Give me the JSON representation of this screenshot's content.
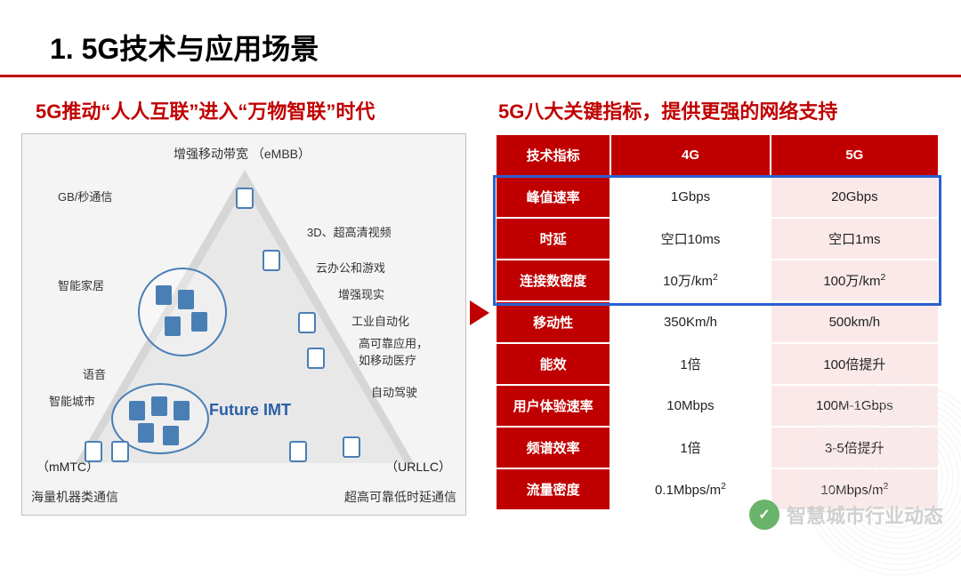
{
  "title": "1. 5G技术与应用场景",
  "colors": {
    "accent": "#c00000",
    "highlight_border": "#2a5fd0",
    "cell_5g": "#fbe9e9",
    "diagram_bg": "#f4f4f4",
    "tri": "#d6d6d6",
    "blue": "#4a7fb5"
  },
  "left": {
    "heading": "5G推动“人人互联”进入“万物智联”时代",
    "apex": "增强移动带宽  （eMBB）",
    "bottom_left": "海量机器类通信",
    "bottom_right": "超高可靠低时延通信",
    "corner_left": "（mMTC）",
    "corner_right": "（URLLC）",
    "center": "Future IMT",
    "labels": {
      "gb": "GB/秒通信",
      "smarthome": "智能家居",
      "voice": "语音",
      "smartcity": "智能城市",
      "threeD": "3D、超高清视频",
      "cloud": "云办公和游戏",
      "ar": "增强现实",
      "industry": "工业自动化",
      "reliable": "高可靠应用，\n如移动医疗",
      "auto": "自动驾驶"
    }
  },
  "right": {
    "heading": "5G八大关键指标，提供更强的网络支持",
    "columns": [
      "技术指标",
      "4G",
      "5G"
    ],
    "rows": [
      {
        "k": "峰值速率",
        "v4": "1Gbps",
        "v5": "20Gbps"
      },
      {
        "k": "时延",
        "v4": "空口10ms",
        "v5": "空口1ms"
      },
      {
        "k": "连接数密度",
        "v4": "10万/km²",
        "v5": "100万/km²"
      },
      {
        "k": "移动性",
        "v4": "350Km/h",
        "v5": "500km/h"
      },
      {
        "k": "能效",
        "v4": "1倍",
        "v5": "100倍提升"
      },
      {
        "k": "用户体验速率",
        "v4": "10Mbps",
        "v5": "100M-1Gbps"
      },
      {
        "k": "频谱效率",
        "v4": "1倍",
        "v5": "3-5倍提升"
      },
      {
        "k": "流量密度",
        "v4": "0.1Mbps/m²",
        "v5": "10Mbps/m²"
      }
    ],
    "highlight_rows": [
      0,
      1,
      2
    ]
  },
  "watermark": {
    "icon": "✓",
    "text": "智慧城市行业动态"
  }
}
